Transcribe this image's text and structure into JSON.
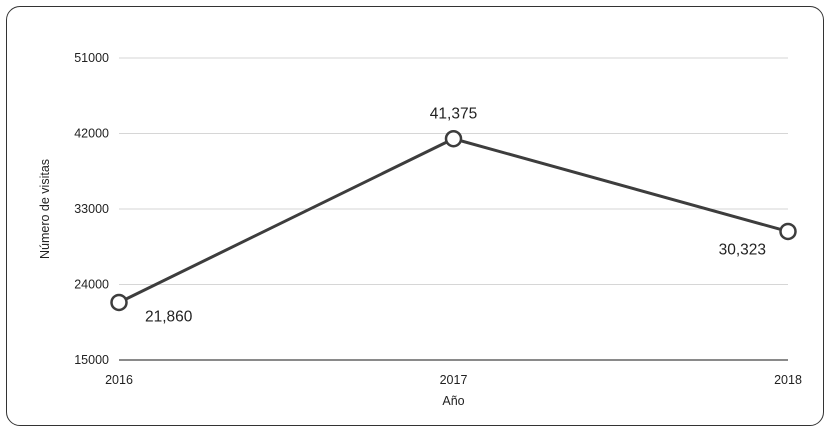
{
  "chart_data": {
    "type": "line",
    "title": "",
    "xlabel": "Año",
    "ylabel": "Número de visitas",
    "categories": [
      "2016",
      "2017",
      "2018"
    ],
    "series": [
      {
        "values": [
          21860,
          41375,
          30323
        ],
        "data_labels": [
          "21,860",
          "41,375",
          "30,323"
        ],
        "color": "#3d3d3d",
        "marker": "hollow-circle"
      }
    ],
    "ylim": [
      15000,
      51000
    ],
    "yticks": [
      15000,
      24000,
      33000,
      42000,
      51000
    ],
    "ytick_labels": [
      "15000",
      "24000",
      "33000",
      "42000",
      "51000"
    ],
    "grid": "horizontal",
    "legend": "none"
  }
}
